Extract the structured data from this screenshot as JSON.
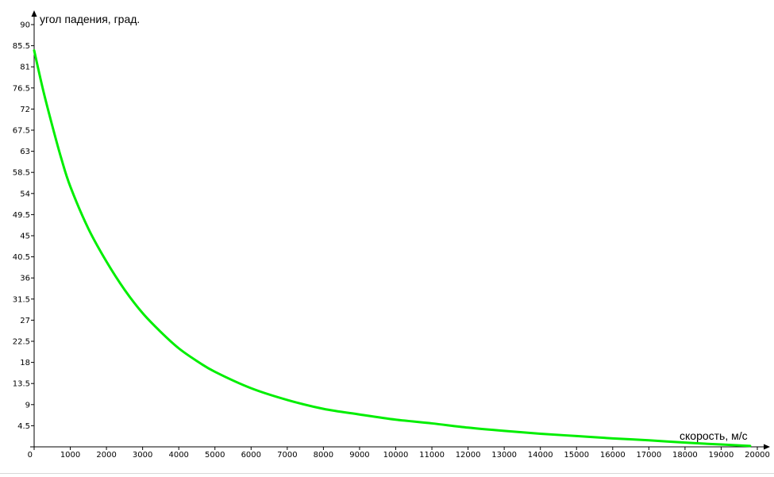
{
  "chart_data": {
    "type": "line",
    "title": "",
    "xlabel": "скорость, м/с",
    "ylabel": "угол падения, град.",
    "xlim": [
      0,
      20000
    ],
    "ylim": [
      0,
      90
    ],
    "x_ticks": [
      "0",
      "1000",
      "2000",
      "3000",
      "4000",
      "5000",
      "6000",
      "7000",
      "8000",
      "9000",
      "10000",
      "11000",
      "12000",
      "13000",
      "14000",
      "15000",
      "16000",
      "17000",
      "18000",
      "19000",
      "20000"
    ],
    "y_ticks": [
      "90",
      "85.5",
      "81",
      "76.5",
      "72",
      "67.5",
      "63",
      "58.5",
      "54",
      "49.5",
      "45",
      "40.5",
      "36",
      "31.5",
      "27",
      "22.5",
      "18",
      "13.5",
      "9",
      "4.5"
    ],
    "grid": false,
    "series": [
      {
        "color": "#00ee00",
        "x": [
          0,
          250,
          500,
          750,
          1000,
          1500,
          2000,
          2500,
          3000,
          3500,
          4000,
          4500,
          5000,
          6000,
          7000,
          8000,
          9000,
          10000,
          11000,
          12000,
          13000,
          14000,
          15000,
          16000,
          17000,
          18000,
          19000,
          19800
        ],
        "y": [
          84.5,
          76,
          68.5,
          61.5,
          55.5,
          46.5,
          39.5,
          33.5,
          28.5,
          24.5,
          21,
          18.3,
          16,
          12.5,
          10,
          8.1,
          6.9,
          5.8,
          5,
          4.1,
          3.4,
          2.8,
          2.3,
          1.8,
          1.4,
          0.9,
          0.5,
          0.2
        ]
      }
    ]
  }
}
